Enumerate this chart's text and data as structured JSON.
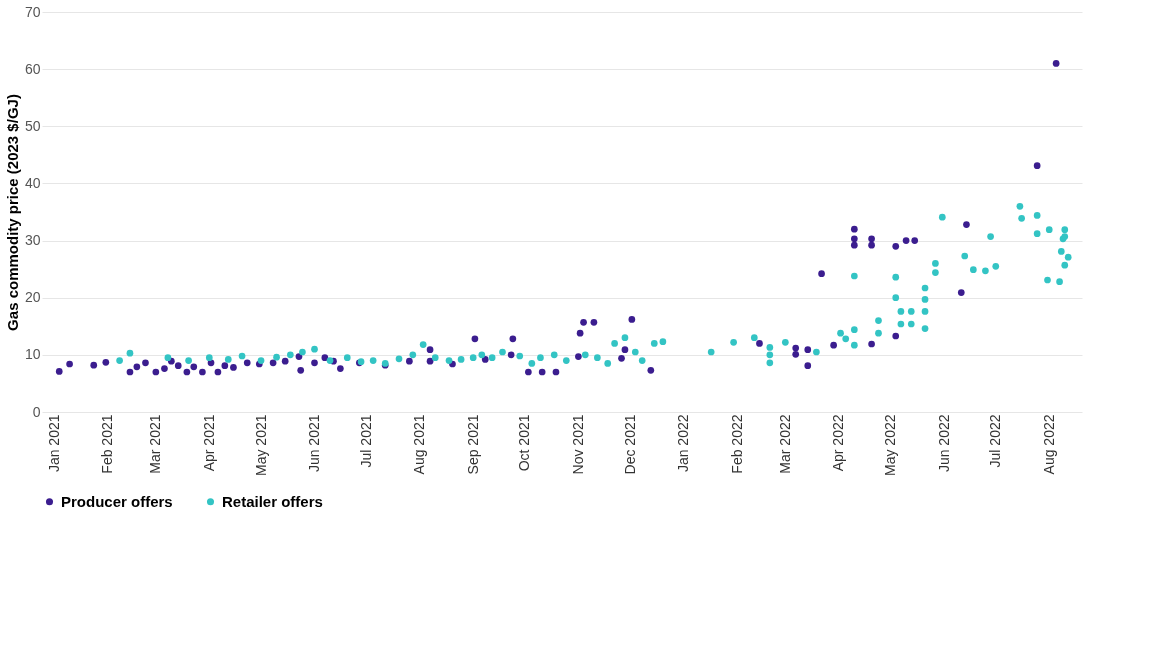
{
  "chart_data": {
    "type": "scatter",
    "ylabel": "Gas commodity price (2023 $/GJ)",
    "xlim": [
      "2020-12-25",
      "2022-08-20"
    ],
    "xticks": [
      {
        "value": "2021-01-01",
        "label": "Jan 2021"
      },
      {
        "value": "2021-02-01",
        "label": "Feb 2021"
      },
      {
        "value": "2021-03-01",
        "label": "Mar 2021"
      },
      {
        "value": "2021-04-01",
        "label": "Apr 2021"
      },
      {
        "value": "2021-05-01",
        "label": "May 2021"
      },
      {
        "value": "2021-06-01",
        "label": "Jun 2021"
      },
      {
        "value": "2021-07-01",
        "label": "Jul 2021"
      },
      {
        "value": "2021-08-01",
        "label": "Aug 2021"
      },
      {
        "value": "2021-09-01",
        "label": "Sep 2021"
      },
      {
        "value": "2021-10-01",
        "label": "Oct 2021"
      },
      {
        "value": "2021-11-01",
        "label": "Nov 2021"
      },
      {
        "value": "2021-12-01",
        "label": "Dec 2021"
      },
      {
        "value": "2022-01-01",
        "label": "Jan 2022"
      },
      {
        "value": "2022-02-01",
        "label": "Feb 2022"
      },
      {
        "value": "2022-03-01",
        "label": "Mar 2022"
      },
      {
        "value": "2022-04-01",
        "label": "Apr 2022"
      },
      {
        "value": "2022-05-01",
        "label": "May 2022"
      },
      {
        "value": "2022-06-01",
        "label": "Jun 2022"
      },
      {
        "value": "2022-07-01",
        "label": "Jul 2022"
      },
      {
        "value": "2022-08-01",
        "label": "Aug 2022"
      }
    ],
    "ylim": [
      0,
      70
    ],
    "yticks": [
      0,
      10,
      20,
      30,
      40,
      50,
      60,
      70
    ],
    "grid": "y",
    "legend": "bottom",
    "marker": "circle",
    "series": [
      {
        "name": "Producer offers",
        "color": "#3b1d8f",
        "x": [
          "2021-01-04",
          "2021-01-10",
          "2021-01-24",
          "2021-01-31",
          "2021-02-14",
          "2021-02-18",
          "2021-02-23",
          "2021-03-01",
          "2021-03-06",
          "2021-03-10",
          "2021-03-14",
          "2021-03-19",
          "2021-03-23",
          "2021-03-28",
          "2021-04-02",
          "2021-04-06",
          "2021-04-10",
          "2021-04-15",
          "2021-04-23",
          "2021-04-30",
          "2021-05-08",
          "2021-05-15",
          "2021-05-23",
          "2021-05-24",
          "2021-06-01",
          "2021-06-07",
          "2021-06-12",
          "2021-06-16",
          "2021-06-27",
          "2021-07-12",
          "2021-07-26",
          "2021-08-07",
          "2021-08-07",
          "2021-08-20",
          "2021-09-02",
          "2021-09-08",
          "2021-09-23",
          "2021-09-24",
          "2021-10-03",
          "2021-10-11",
          "2021-10-19",
          "2021-11-01",
          "2021-11-02",
          "2021-11-04",
          "2021-11-10",
          "2021-11-26",
          "2021-11-28",
          "2021-12-02",
          "2021-12-13",
          "2022-02-14",
          "2022-03-07",
          "2022-03-07",
          "2022-03-14",
          "2022-03-14",
          "2022-03-22",
          "2022-03-29",
          "2022-04-10",
          "2022-04-10",
          "2022-04-10",
          "2022-04-20",
          "2022-04-20",
          "2022-04-20",
          "2022-05-04",
          "2022-05-04",
          "2022-05-10",
          "2022-05-15",
          "2022-06-11",
          "2022-06-14",
          "2022-07-25",
          "2022-08-05"
        ],
        "values": [
          7.1,
          8.4,
          8.2,
          8.7,
          7.0,
          7.9,
          8.6,
          7.0,
          7.6,
          8.9,
          8.1,
          7.0,
          7.9,
          7.0,
          8.6,
          7.0,
          8.1,
          7.8,
          8.6,
          8.4,
          8.6,
          8.9,
          9.7,
          7.3,
          8.6,
          9.5,
          8.9,
          7.6,
          8.6,
          8.2,
          8.9,
          10.9,
          8.9,
          8.4,
          12.8,
          9.2,
          10.0,
          12.8,
          7.0,
          7.0,
          7.0,
          9.7,
          13.8,
          15.7,
          15.7,
          9.4,
          10.9,
          16.2,
          7.3,
          12.0,
          11.2,
          10.1,
          8.1,
          10.9,
          24.2,
          11.7,
          32.0,
          30.3,
          29.2,
          30.3,
          29.2,
          11.9,
          29.0,
          13.3,
          30.0,
          30.0,
          20.9,
          32.8,
          43.1,
          61.0
        ]
      },
      {
        "name": "Retailer offers",
        "color": "#33c4c4",
        "x": [
          "2021-02-08",
          "2021-02-14",
          "2021-03-08",
          "2021-03-20",
          "2021-04-01",
          "2021-04-12",
          "2021-04-20",
          "2021-05-01",
          "2021-05-10",
          "2021-05-18",
          "2021-05-25",
          "2021-06-01",
          "2021-06-10",
          "2021-06-20",
          "2021-06-28",
          "2021-07-05",
          "2021-07-12",
          "2021-07-20",
          "2021-07-28",
          "2021-08-03",
          "2021-08-10",
          "2021-08-18",
          "2021-08-25",
          "2021-09-01",
          "2021-09-06",
          "2021-09-12",
          "2021-09-18",
          "2021-09-28",
          "2021-10-05",
          "2021-10-10",
          "2021-10-18",
          "2021-10-25",
          "2021-11-05",
          "2021-11-12",
          "2021-11-18",
          "2021-11-22",
          "2021-11-28",
          "2021-12-04",
          "2021-12-08",
          "2021-12-15",
          "2021-12-20",
          "2022-01-17",
          "2022-01-30",
          "2022-02-11",
          "2022-02-20",
          "2022-02-20",
          "2022-02-20",
          "2022-03-01",
          "2022-03-19",
          "2022-04-02",
          "2022-04-05",
          "2022-04-10",
          "2022-04-10",
          "2022-04-10",
          "2022-04-24",
          "2022-04-24",
          "2022-05-04",
          "2022-05-04",
          "2022-05-07",
          "2022-05-07",
          "2022-05-13",
          "2022-05-13",
          "2022-05-21",
          "2022-05-21",
          "2022-05-21",
          "2022-05-21",
          "2022-05-27",
          "2022-05-27",
          "2022-05-31",
          "2022-06-13",
          "2022-06-18",
          "2022-06-25",
          "2022-06-28",
          "2022-07-01",
          "2022-07-15",
          "2022-07-16",
          "2022-07-25",
          "2022-07-25",
          "2022-08-01",
          "2022-07-31",
          "2022-08-07",
          "2022-08-08",
          "2022-08-09",
          "2022-08-10",
          "2022-08-10",
          "2022-08-12",
          "2022-08-10"
        ],
        "values": [
          9.0,
          10.3,
          9.5,
          9.0,
          9.5,
          9.2,
          9.8,
          9.0,
          9.6,
          10.0,
          10.5,
          11.0,
          9.0,
          9.5,
          8.8,
          9.0,
          8.5,
          9.3,
          10.0,
          11.8,
          9.5,
          9.0,
          9.2,
          9.5,
          10.0,
          9.5,
          10.5,
          9.8,
          8.5,
          9.5,
          10.0,
          9.0,
          10.0,
          9.5,
          8.5,
          12.0,
          13.0,
          10.5,
          9.0,
          12.0,
          12.3,
          10.5,
          12.2,
          13.0,
          11.3,
          10.0,
          8.6,
          12.2,
          10.5,
          13.8,
          12.8,
          14.4,
          11.7,
          23.8,
          13.8,
          16.0,
          23.6,
          20.0,
          17.6,
          15.4,
          17.6,
          15.4,
          21.7,
          19.7,
          17.6,
          14.6,
          26.0,
          24.4,
          34.1,
          27.3,
          24.9,
          24.7,
          30.7,
          25.5,
          36.0,
          33.9,
          34.4,
          31.2,
          31.9,
          23.1,
          22.8,
          28.1,
          30.3,
          30.7,
          31.9,
          27.1,
          25.7
        ]
      }
    ]
  }
}
